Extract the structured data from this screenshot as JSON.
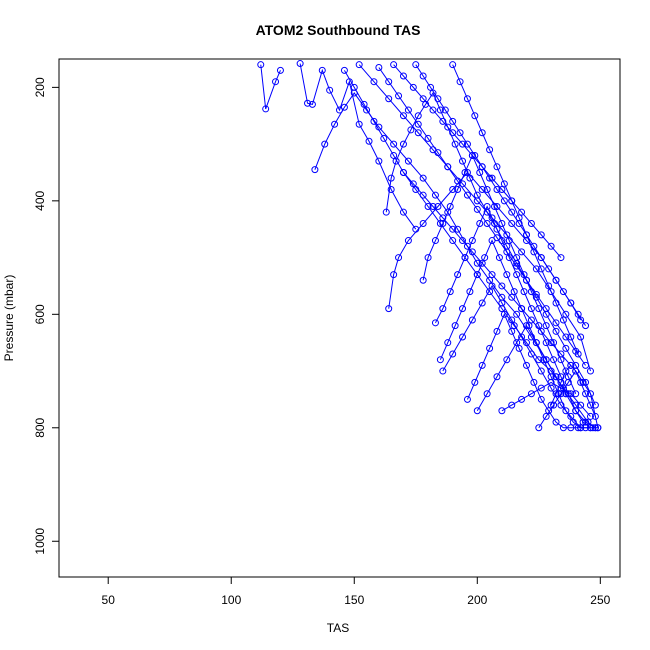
{
  "chart_data": {
    "type": "scatter",
    "title": "ATOM2 Southbound TAS",
    "xlabel": "TAS",
    "ylabel": "Pressure (mbar)",
    "xlim": [
      30,
      258
    ],
    "ylim": [
      1063,
      150
    ],
    "y_reversed": true,
    "x_ticks": [
      50,
      100,
      150,
      200,
      250
    ],
    "x_tick_labels": [
      "50",
      "100",
      "150",
      "200",
      "250"
    ],
    "y_ticks": [
      200,
      400,
      600,
      800,
      1000
    ],
    "y_tick_labels": [
      "200",
      "400",
      "600",
      "800",
      "1000"
    ],
    "grid": false,
    "series_color": "#0000ff",
    "marker": "open-circle",
    "connected": true,
    "series": [
      {
        "x": [
          112,
          114,
          118,
          120
        ],
        "y": [
          160,
          238,
          190,
          170
        ]
      },
      {
        "x": [
          128,
          131,
          133,
          137,
          140,
          144,
          148,
          152,
          156,
          160,
          165,
          170,
          175
        ],
        "y": [
          158,
          228,
          230,
          170,
          205,
          240,
          190,
          265,
          295,
          330,
          380,
          420,
          450
        ]
      },
      {
        "x": [
          134,
          138,
          142,
          146,
          150,
          155,
          160,
          166,
          172,
          178,
          183,
          188,
          192,
          196,
          200,
          205,
          210,
          216,
          222,
          228,
          232,
          236
        ],
        "y": [
          345,
          300,
          265,
          235,
          210,
          240,
          270,
          300,
          330,
          360,
          390,
          420,
          450,
          480,
          510,
          540,
          570,
          600,
          640,
          680,
          710,
          740
        ]
      },
      {
        "x": [
          146,
          150,
          154,
          158,
          162,
          166,
          170,
          175,
          180,
          185,
          190,
          195,
          200,
          205,
          210,
          215,
          220,
          225,
          230,
          235,
          240,
          245,
          248
        ],
        "y": [
          170,
          200,
          230,
          260,
          290,
          320,
          350,
          380,
          410,
          440,
          470,
          500,
          530,
          560,
          590,
          620,
          650,
          680,
          700,
          730,
          760,
          790,
          800
        ]
      },
      {
        "x": [
          152,
          158,
          164,
          170,
          176,
          182,
          188,
          194,
          200,
          206,
          212,
          218,
          224,
          230,
          236,
          242,
          246
        ],
        "y": [
          160,
          190,
          220,
          250,
          280,
          310,
          340,
          370,
          400,
          430,
          460,
          490,
          520,
          560,
          600,
          640,
          700
        ]
      },
      {
        "x": [
          160,
          164,
          168,
          172,
          176,
          180,
          184,
          188,
          192,
          196,
          200,
          204,
          208,
          212,
          216,
          220,
          224,
          228,
          232,
          236,
          240,
          244
        ],
        "y": [
          165,
          190,
          215,
          240,
          265,
          290,
          315,
          340,
          365,
          390,
          415,
          440,
          465,
          490,
          515,
          540,
          565,
          590,
          615,
          640,
          665,
          690
        ]
      },
      {
        "x": [
          163,
          165,
          167,
          170,
          173,
          176,
          179,
          182,
          185,
          188,
          191,
          194,
          197,
          200,
          204,
          208,
          212,
          216,
          220,
          224,
          228,
          232,
          236,
          240,
          244,
          248
        ],
        "y": [
          420,
          360,
          330,
          300,
          275,
          250,
          230,
          210,
          240,
          270,
          300,
          330,
          360,
          390,
          420,
          450,
          480,
          510,
          540,
          570,
          600,
          630,
          660,
          690,
          720,
          760
        ]
      },
      {
        "x": [
          164,
          166,
          168,
          172,
          178,
          184,
          190,
          196,
          202,
          208,
          214,
          220,
          226,
          232,
          238,
          242
        ],
        "y": [
          590,
          530,
          500,
          470,
          440,
          410,
          380,
          350,
          380,
          410,
          440,
          470,
          500,
          540,
          580,
          610
        ]
      },
      {
        "x": [
          166,
          170,
          174,
          178,
          182,
          186,
          190,
          194,
          198,
          202,
          206,
          210,
          214,
          218,
          222,
          226,
          230,
          234
        ],
        "y": [
          160,
          180,
          200,
          220,
          240,
          260,
          280,
          300,
          320,
          340,
          360,
          380,
          400,
          420,
          440,
          460,
          480,
          500
        ]
      },
      {
        "x": [
          170,
          174,
          178,
          182,
          186,
          190,
          194,
          198,
          202,
          206,
          210,
          214,
          218,
          222,
          226,
          230,
          234,
          238
        ],
        "y": [
          350,
          370,
          390,
          410,
          430,
          450,
          470,
          490,
          510,
          530,
          550,
          570,
          590,
          610,
          630,
          650,
          670,
          690
        ]
      },
      {
        "x": [
          175,
          178,
          181,
          184,
          187,
          190,
          193,
          196,
          199,
          202,
          205,
          208,
          211,
          214,
          217,
          220,
          223,
          226,
          229,
          232,
          235,
          238,
          241,
          244
        ],
        "y": [
          160,
          180,
          200,
          220,
          240,
          260,
          280,
          300,
          320,
          340,
          360,
          380,
          400,
          420,
          440,
          460,
          480,
          500,
          520,
          540,
          560,
          580,
          600,
          620
        ]
      },
      {
        "x": [
          178,
          180,
          183,
          186,
          189,
          192,
          195,
          198,
          201,
          204,
          207,
          210,
          213,
          216,
          219,
          222,
          225,
          228,
          231,
          234,
          237,
          240
        ],
        "y": [
          540,
          500,
          470,
          440,
          410,
          380,
          350,
          320,
          350,
          380,
          410,
          440,
          470,
          500,
          530,
          560,
          590,
          620,
          650,
          680,
          710,
          740
        ]
      },
      {
        "x": [
          183,
          186,
          189,
          192,
          195,
          198,
          201,
          204,
          207,
          210,
          213,
          216,
          219,
          222,
          225,
          228,
          231,
          234,
          237,
          240,
          243,
          246,
          249
        ],
        "y": [
          615,
          590,
          560,
          530,
          500,
          470,
          440,
          410,
          440,
          470,
          500,
          530,
          560,
          590,
          620,
          650,
          680,
          710,
          740,
          770,
          790,
          800,
          800
        ]
      },
      {
        "x": [
          185,
          188,
          191,
          194,
          197,
          200,
          203,
          206,
          209,
          212,
          215,
          218,
          221,
          224,
          227,
          230,
          233,
          236,
          239,
          242
        ],
        "y": [
          680,
          650,
          620,
          590,
          560,
          530,
          500,
          470,
          500,
          530,
          560,
          590,
          620,
          650,
          680,
          710,
          740,
          770,
          790,
          800
        ]
      },
      {
        "x": [
          186,
          190,
          194,
          198,
          202,
          206,
          210,
          214,
          218,
          222,
          226,
          230,
          234,
          238,
          242,
          246
        ],
        "y": [
          700,
          670,
          640,
          610,
          580,
          550,
          580,
          610,
          640,
          670,
          700,
          730,
          760,
          780,
          800,
          800
        ]
      },
      {
        "x": [
          190,
          193,
          196,
          199,
          202,
          205,
          208,
          211,
          214,
          217,
          220,
          223,
          226,
          229,
          232,
          235,
          238,
          241
        ],
        "y": [
          160,
          190,
          220,
          250,
          280,
          310,
          340,
          370,
          400,
          430,
          460,
          490,
          520,
          550,
          580,
          610,
          640,
          670
        ]
      },
      {
        "x": [
          196,
          199,
          202,
          205,
          208,
          211,
          214,
          217,
          220,
          223,
          226,
          229,
          232,
          235,
          238,
          241,
          244,
          247
        ],
        "y": [
          750,
          720,
          690,
          660,
          630,
          600,
          630,
          660,
          690,
          720,
          750,
          770,
          790,
          800,
          800,
          800,
          800,
          800
        ]
      },
      {
        "x": [
          200,
          204,
          208,
          212,
          216,
          220,
          224,
          228,
          232,
          236,
          240,
          244,
          248
        ],
        "y": [
          770,
          740,
          710,
          680,
          650,
          620,
          650,
          680,
          710,
          740,
          770,
          790,
          800
        ]
      },
      {
        "x": [
          210,
          214,
          218,
          222,
          226,
          230,
          234,
          238,
          242,
          246
        ],
        "y": [
          770,
          760,
          750,
          740,
          730,
          720,
          730,
          740,
          760,
          780
        ]
      },
      {
        "x": [
          225,
          228,
          231,
          234,
          237,
          240,
          243,
          246,
          249
        ],
        "y": [
          800,
          780,
          760,
          740,
          720,
          700,
          720,
          740,
          800
        ]
      },
      {
        "x": [
          230,
          232,
          234,
          236,
          238,
          240,
          242,
          244,
          246,
          248
        ],
        "y": [
          760,
          740,
          720,
          700,
          690,
          700,
          720,
          740,
          760,
          780
        ]
      }
    ]
  }
}
